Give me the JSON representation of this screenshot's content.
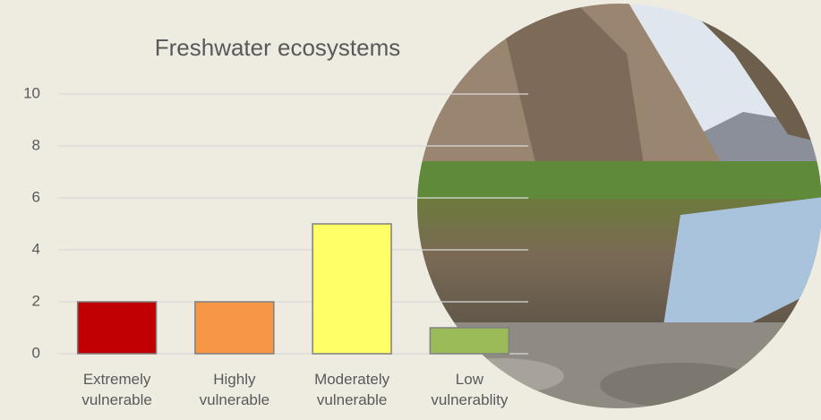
{
  "chart_data": {
    "type": "bar",
    "title": "Freshwater ecosystems",
    "categories": [
      "Extremely vulnerable",
      "Highly vulnerable",
      "Moderately vulnerable",
      "Low vulnerablity"
    ],
    "values": [
      2,
      2,
      5,
      1
    ],
    "colors": [
      "#c00000",
      "#f79646",
      "#ffff66",
      "#9bbb59"
    ],
    "ylim": [
      0,
      10
    ],
    "yticks": [
      0,
      2,
      4,
      6,
      8,
      10
    ],
    "grid": true
  }
}
